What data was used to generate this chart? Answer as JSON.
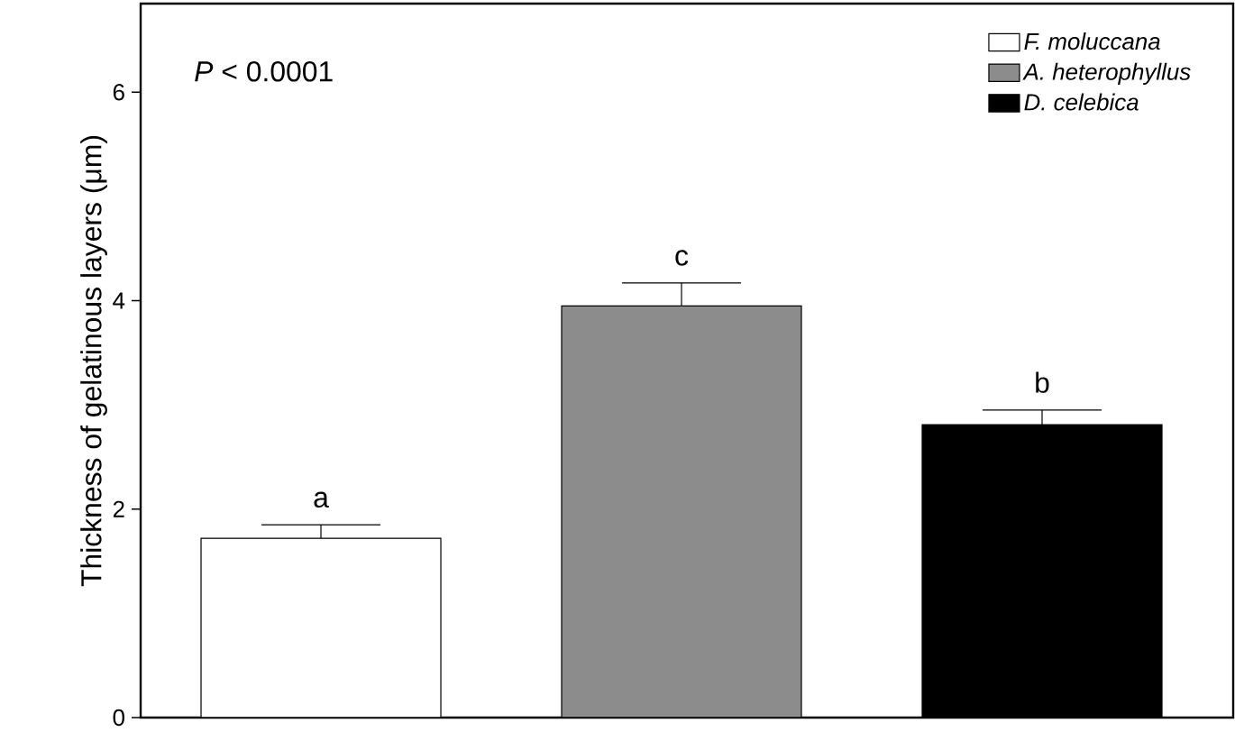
{
  "chart_data": {
    "type": "bar",
    "ylabel": "Thickness of gelatinous layers (μm)",
    "categories": [
      null,
      null,
      null
    ],
    "stacked": true,
    "series": [
      {
        "name": "F. moluccana",
        "color": "#ffffff",
        "values": [
          1.72,
          null,
          null
        ],
        "errors": [
          0.13,
          null,
          null
        ]
      },
      {
        "name": "A. heterophyllus",
        "color": "#8c8c8c",
        "values": [
          null,
          3.95,
          null
        ],
        "errors": [
          null,
          0.22,
          null
        ]
      },
      {
        "name": "D. celebica",
        "color": "#000000",
        "values": [
          null,
          null,
          2.81
        ],
        "errors": [
          null,
          null,
          0.14
        ]
      }
    ],
    "ylim": [
      0,
      6.85
    ],
    "yticks": [
      0,
      2,
      4,
      6
    ],
    "legend": "top right",
    "annotations": [
      "*P* < 0.0001",
      "a",
      "c",
      "b"
    ]
  }
}
